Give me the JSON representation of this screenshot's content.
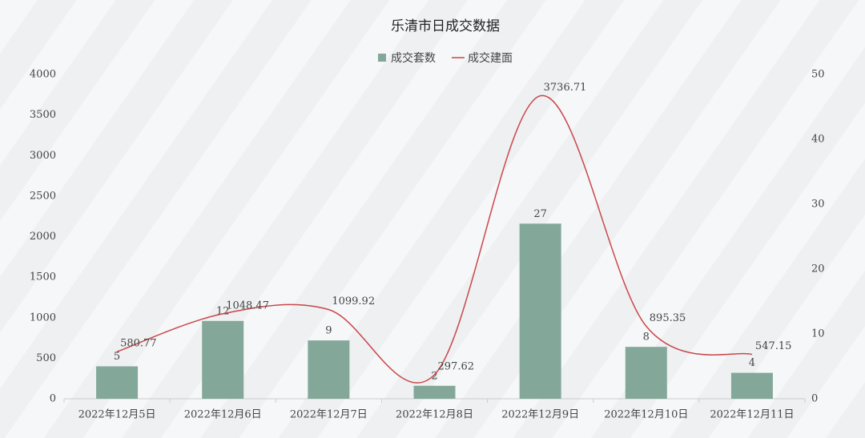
{
  "chart_data": {
    "type": "bar-line",
    "title": "乐清市日成交数据",
    "categories": [
      "2022年12月5日",
      "2022年12月6日",
      "2022年12月7日",
      "2022年12月8日",
      "2022年12月9日",
      "2022年12月10日",
      "2022年12月11日"
    ],
    "series": [
      {
        "name": "成交套数",
        "type": "bar",
        "axis": "y2",
        "color": "#83a89a",
        "values": [
          5,
          12,
          9,
          2,
          27,
          8,
          4
        ]
      },
      {
        "name": "成交建面",
        "type": "line",
        "color": "#c9474a",
        "values": [
          580.77,
          1048.47,
          1099.92,
          297.62,
          3736.71,
          895.35,
          547.15
        ]
      }
    ],
    "ylim": [
      0,
      4000
    ],
    "yticks": [
      0,
      500,
      1000,
      1500,
      2000,
      2500,
      3000,
      3500,
      4000
    ],
    "y2lim": [
      0,
      50
    ],
    "y2ticks": [
      0,
      10,
      20,
      30,
      40,
      50
    ]
  }
}
